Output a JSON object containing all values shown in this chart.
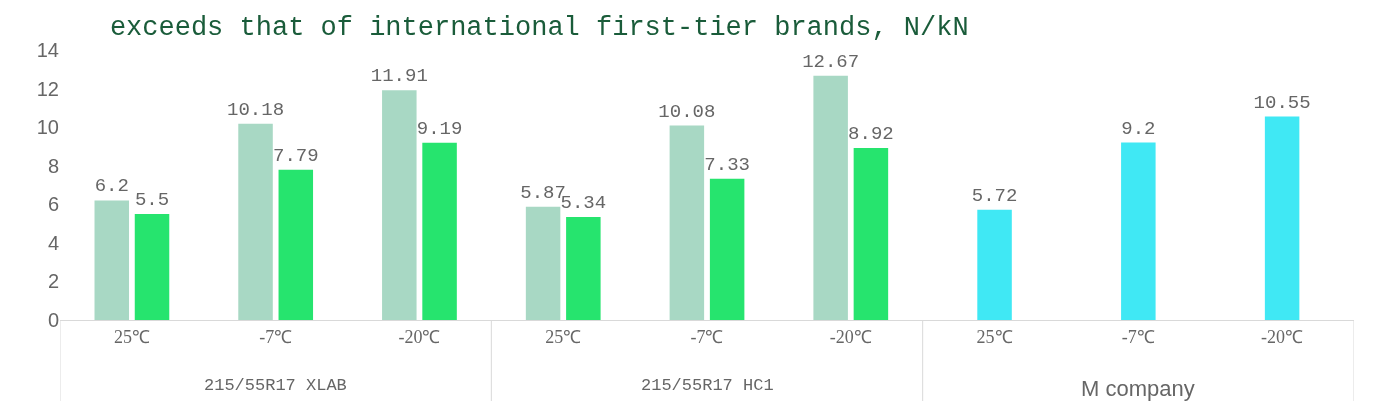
{
  "chart_data": {
    "type": "bar",
    "title": "exceeds that of international first-tier brands, N/kN",
    "categories": [
      "25℃",
      "-7℃",
      "-20℃",
      "25℃",
      "-7℃",
      "-20℃",
      "25℃",
      "-7℃",
      "-20℃"
    ],
    "series": [
      {
        "color": "#a8d8c4",
        "values": [
          6.2,
          10.18,
          11.91,
          5.87,
          10.08,
          12.67,
          null,
          null,
          null
        ]
      },
      {
        "color": "#26e46e",
        "values": [
          5.5,
          7.79,
          9.19,
          5.34,
          7.33,
          8.92,
          null,
          null,
          null
        ]
      },
      {
        "color": "#40e8f4",
        "values": [
          null,
          null,
          null,
          null,
          null,
          null,
          5.72,
          9.2,
          10.55
        ]
      }
    ],
    "annotations": [
      "215/55R17 XLAB",
      "215/55R17 HC1",
      "M company"
    ],
    "ylim": [
      0,
      14
    ],
    "yticks": [
      0,
      2,
      4,
      6,
      8,
      10,
      12,
      14
    ],
    "grid": false,
    "data_labels": true
  }
}
